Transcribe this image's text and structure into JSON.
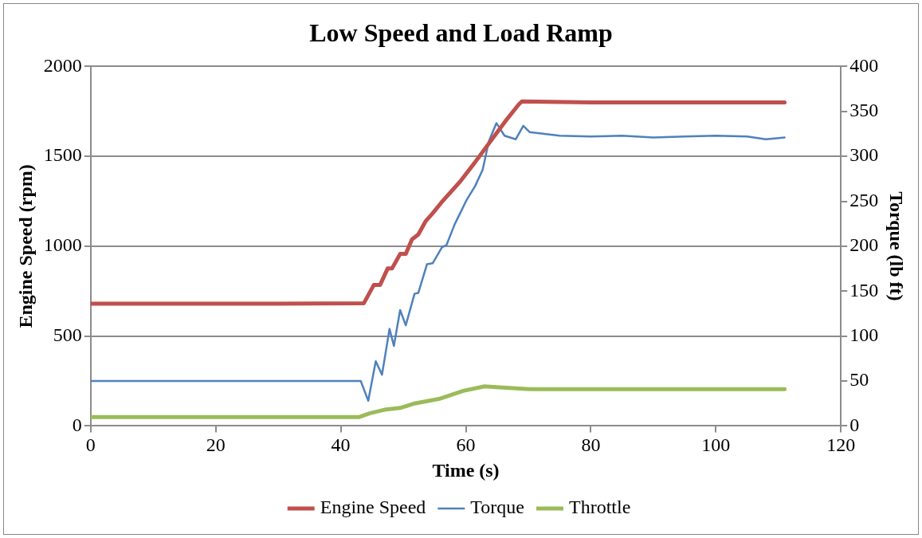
{
  "chart_data": {
    "type": "line",
    "title": "Low Speed and Load Ramp",
    "xlabel": "Time (s)",
    "ylabel": "Engine Speed (rpm)",
    "y2label": "Torque (lb ft)",
    "xlim": [
      0,
      120
    ],
    "xticks": [
      0,
      20,
      40,
      60,
      80,
      100,
      120
    ],
    "ylim": [
      0,
      2000
    ],
    "yticks": [
      0,
      500,
      1000,
      1500,
      2000
    ],
    "y2lim": [
      0,
      400
    ],
    "y2ticks": [
      0,
      50,
      100,
      150,
      200,
      250,
      300,
      350,
      400
    ],
    "grid": "y",
    "legend": "bottom",
    "marker": "none",
    "line_style": "solid",
    "series": [
      {
        "name": "Engine Speed",
        "color": "#c0504d",
        "x": [
          0,
          10,
          20,
          30,
          43.7,
          45.3,
          46.3,
          47.5,
          48.2,
          49.5,
          50.4,
          51.4,
          52.4,
          53.6,
          54.7,
          56.2,
          59.1,
          61.5,
          64,
          66.3,
          68.5,
          69,
          80,
          90,
          100,
          111
        ],
        "values": [
          680,
          680,
          680,
          680,
          683,
          785,
          785,
          876,
          876,
          957,
          957,
          1038,
          1065,
          1140,
          1183,
          1247,
          1360,
          1468,
          1586,
          1694,
          1790,
          1806,
          1800,
          1800,
          1800,
          1800
        ]
      },
      {
        "name": "Torque",
        "color": "#4f81bd",
        "axis": "y2",
        "x": [
          0,
          10,
          20,
          30,
          43.2,
          44.4,
          45.6,
          46.6,
          47.8,
          48.5,
          49.5,
          50.4,
          51.8,
          52.4,
          53.8,
          54.7,
          56.2,
          56.9,
          58.2,
          60.1,
          61.5,
          62.7,
          63.7,
          64.9,
          66.2,
          68,
          69.2,
          70.2,
          75,
          80,
          85,
          90,
          95,
          100,
          105,
          108,
          111
        ],
        "values": [
          50,
          50,
          50,
          50,
          50,
          28,
          72,
          57,
          108,
          89,
          129,
          112,
          147,
          148,
          180,
          181,
          199,
          201,
          224,
          251,
          267,
          285,
          317,
          337,
          323,
          319,
          334,
          327,
          323,
          322,
          323,
          321,
          322,
          323,
          322,
          319,
          321
        ]
      },
      {
        "name": "Throttle",
        "color": "#9bbb59",
        "axis": "y2",
        "x": [
          0,
          20,
          43,
          44.6,
          47,
          49.5,
          51.8,
          55.7,
          59.6,
          63,
          65.4,
          70.2,
          90,
          111
        ],
        "values": [
          10,
          10,
          10,
          14,
          18,
          20,
          25,
          30,
          39,
          44,
          43,
          41,
          41,
          41
        ]
      }
    ]
  }
}
